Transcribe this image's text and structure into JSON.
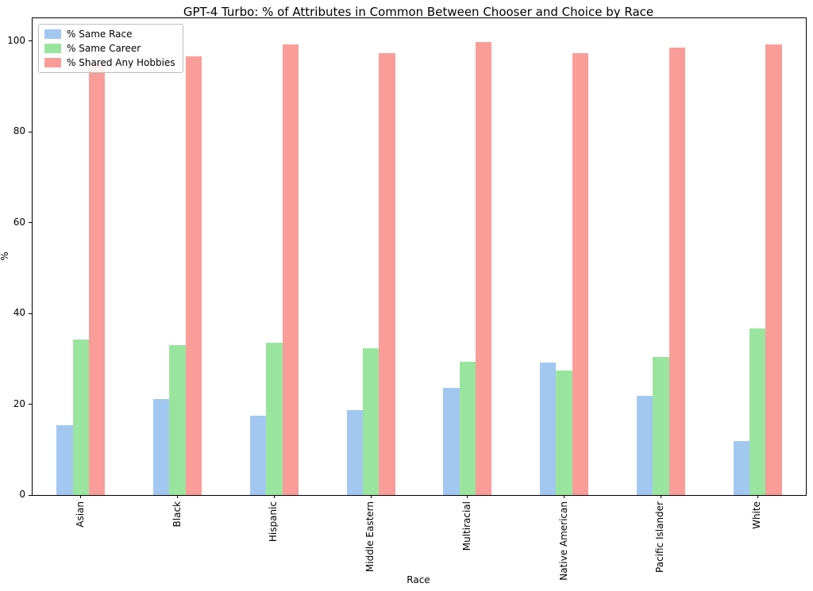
{
  "chart_data": {
    "type": "bar",
    "title": "GPT-4 Turbo: % of Attributes in Common Between Chooser and Choice by Race",
    "xlabel": "Race",
    "ylabel": "%",
    "ylim": [
      0,
      105
    ],
    "yticks": [
      0,
      20,
      40,
      60,
      80,
      100
    ],
    "grid": false,
    "legend_position": "upper left",
    "categories": [
      "Asian",
      "Black",
      "Hispanic",
      "Middle Eastern",
      "Multiracial",
      "Native American",
      "Pacific Islander",
      "White"
    ],
    "series": [
      {
        "name": "% Same Race",
        "color": "#a2c8f2",
        "values": [
          15.3,
          21.2,
          17.5,
          18.7,
          23.6,
          29.2,
          21.8,
          11.9
        ]
      },
      {
        "name": "% Same Career",
        "color": "#9ae59e",
        "values": [
          34.3,
          33.1,
          33.6,
          32.4,
          29.3,
          27.4,
          30.4,
          36.7
        ]
      },
      {
        "name": "% Shared Any Hobbies",
        "color": "#fa9d99",
        "values": [
          95.2,
          96.7,
          99.3,
          97.4,
          99.8,
          97.4,
          98.6,
          99.3
        ]
      }
    ]
  }
}
